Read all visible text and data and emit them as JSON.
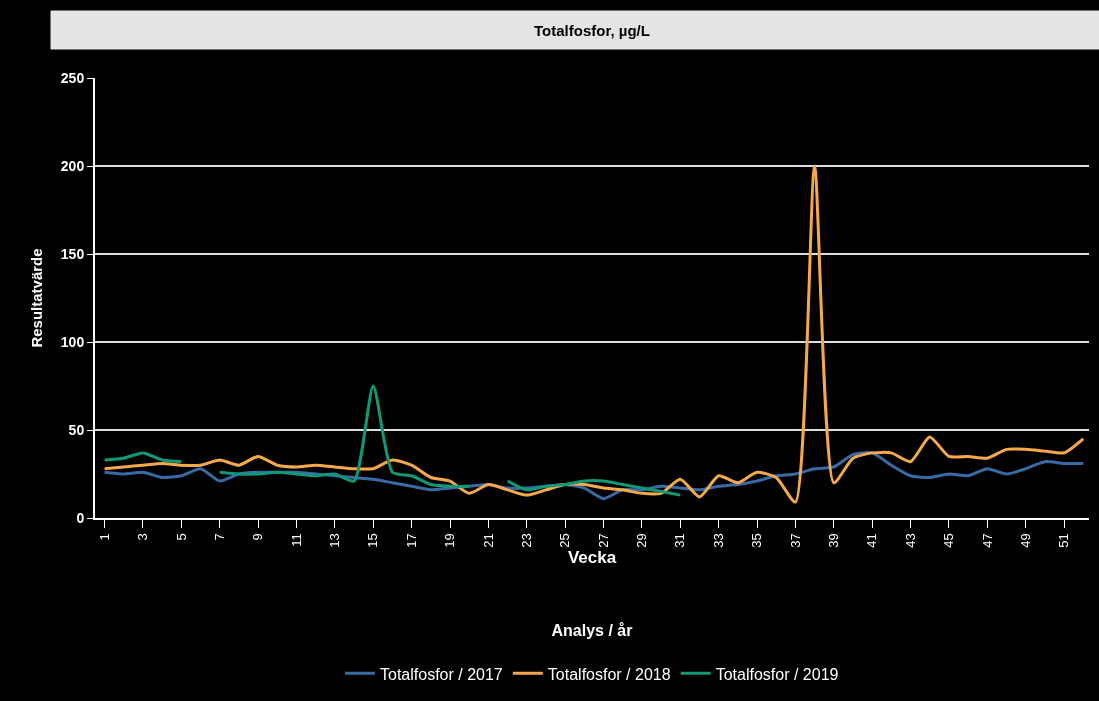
{
  "chart_data": {
    "type": "line",
    "title": "Totalfosfor, µg/L",
    "xlabel": "Vecka",
    "ylabel": "Resultatvärde",
    "legend_title": "Analys / år",
    "x": [
      1,
      2,
      3,
      4,
      5,
      6,
      7,
      8,
      9,
      10,
      11,
      12,
      13,
      14,
      15,
      16,
      17,
      18,
      19,
      20,
      21,
      22,
      23,
      24,
      25,
      26,
      27,
      28,
      29,
      30,
      31,
      32,
      33,
      34,
      35,
      36,
      37,
      38,
      39,
      40,
      41,
      42,
      43,
      44,
      45,
      46,
      47,
      48,
      49,
      50,
      51,
      52
    ],
    "series": [
      {
        "name": "Totalfosfor / 2017",
        "color": "#3a6aa5",
        "values": [
          26,
          25,
          26,
          23,
          24,
          28,
          21,
          25,
          26,
          26,
          26,
          25,
          24,
          23,
          22,
          20,
          18,
          16,
          17,
          18,
          19,
          17,
          17,
          18,
          19,
          17,
          11,
          16,
          16,
          18,
          17,
          16,
          18,
          19,
          21,
          24,
          25,
          28,
          29,
          36,
          37,
          30,
          24,
          23,
          25,
          24,
          28,
          25,
          28,
          32,
          31,
          31
        ]
      },
      {
        "name": "Totalfosfor / 2018",
        "color": "#f5a94a",
        "values": [
          28,
          29,
          30,
          31,
          30,
          30,
          33,
          30,
          35,
          30,
          29,
          30,
          29,
          28,
          28,
          33,
          30,
          23,
          21,
          14,
          19,
          16,
          13,
          16,
          19,
          19,
          17,
          16,
          14,
          14,
          22,
          12,
          24,
          20,
          26,
          23,
          9,
          200,
          20,
          34,
          37,
          37,
          32,
          46,
          35,
          35,
          34,
          39,
          39,
          38,
          37,
          45
        ]
      },
      {
        "name": "Totalfosfor / 2019",
        "color": "#0e9a78",
        "values": [
          33,
          34,
          37,
          33,
          32,
          null,
          26,
          25,
          25,
          26,
          25,
          24,
          25,
          21,
          75,
          26,
          24,
          19,
          18,
          18,
          null,
          21,
          16,
          18,
          19,
          21,
          21,
          19,
          17,
          15,
          13,
          null,
          null,
          null,
          null,
          null,
          null,
          null,
          null,
          null,
          null,
          null,
          null,
          null,
          null,
          null,
          null,
          null,
          null,
          null,
          null,
          null
        ]
      }
    ],
    "xlim": [
      0.5,
      52.3
    ],
    "xticks": [
      1,
      3,
      5,
      7,
      9,
      11,
      13,
      15,
      17,
      19,
      21,
      23,
      25,
      27,
      29,
      31,
      33,
      35,
      37,
      39,
      41,
      43,
      45,
      47,
      49,
      51
    ],
    "ylim": [
      0,
      250
    ],
    "yticks": [
      0,
      50,
      100,
      150,
      200,
      250
    ],
    "grid": "y",
    "legend": "bottom",
    "marker": "none",
    "line_style": "solid"
  }
}
